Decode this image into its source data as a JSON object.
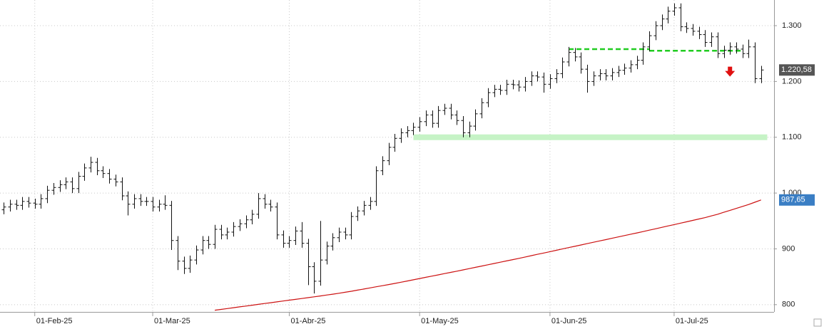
{
  "chart_data": {
    "type": "ohlc",
    "categories": [
      null,
      null,
      null,
      null,
      null,
      "01-Feb-25",
      null,
      null,
      null,
      null,
      null,
      null,
      null,
      null,
      null,
      null,
      null,
      null,
      null,
      null,
      null,
      null,
      null,
      null,
      "01-Mar-25",
      null,
      null,
      null,
      null,
      null,
      null,
      null,
      null,
      null,
      null,
      null,
      null,
      null,
      null,
      null,
      null,
      null,
      null,
      null,
      null,
      null,
      "01-Abr-25",
      null,
      null,
      null,
      null,
      null,
      null,
      null,
      null,
      null,
      null,
      null,
      null,
      null,
      null,
      null,
      null,
      null,
      null,
      null,
      null,
      "01-May-25",
      null,
      null,
      null,
      null,
      null,
      null,
      null,
      null,
      null,
      null,
      null,
      null,
      null,
      null,
      null,
      null,
      null,
      null,
      null,
      null,
      "01-Jun-25",
      null,
      null,
      null,
      null,
      null,
      null,
      null,
      null,
      null,
      null,
      null,
      null,
      null,
      null,
      null,
      null,
      null,
      null,
      null,
      "01-Jul-25",
      null,
      null,
      null,
      null,
      null,
      null,
      null,
      null,
      null,
      null,
      null,
      null,
      null,
      null
    ],
    "xlim": [
      -0.6,
      124.1
    ],
    "ylim": [
      787,
      1346
    ],
    "yticks": [
      800,
      900,
      {
        "value": 1000,
        "label": "1.000"
      },
      {
        "value": 1100,
        "label": "1.100"
      },
      {
        "value": 1200,
        "label": "1.200"
      },
      {
        "value": 1300,
        "label": "1.300"
      }
    ],
    "grid": true,
    "series": [
      {
        "kind": "ohlc",
        "color": "#111111",
        "last_label": "1.220,58",
        "label_color": "#555555",
        "open": [
          970,
          975,
          980,
          978,
          985,
          982,
          980,
          990,
          1005,
          1010,
          1015,
          1020,
          1008,
          1030,
          1045,
          1055,
          1040,
          1035,
          1025,
          1020,
          995,
          980,
          990,
          985,
          985,
          975,
          980,
          978,
          915,
          878,
          865,
          880,
          898,
          915,
          908,
          935,
          925,
          930,
          940,
          945,
          952,
          962,
          990,
          980,
          975,
          925,
          910,
          915,
          932,
          910,
          868,
          842,
          880,
          905,
          920,
          930,
          925,
          958,
          968,
          978,
          985,
          1040,
          1058,
          1082,
          1098,
          1108,
          1112,
          1118,
          1128,
          1140,
          1125,
          1148,
          1152,
          1140,
          1130,
          1108,
          1120,
          1142,
          1162,
          1180,
          1186,
          1184,
          1195,
          1194,
          1190,
          1200,
          1210,
          1208,
          1195,
          1205,
          1214,
          1235,
          1252,
          1244,
          1222,
          1200,
          1210,
          1214,
          1210,
          1216,
          1220,
          1224,
          1230,
          1238,
          1262,
          1282,
          1300,
          1312,
          1326,
          1332,
          1298,
          1295,
          1290,
          1284,
          1270,
          1280,
          1250,
          1256,
          1262,
          1258,
          1250,
          1262,
          1205
        ],
        "high": [
          983,
          988,
          988,
          993,
          993,
          990,
          998,
          1013,
          1018,
          1023,
          1028,
          1028,
          1038,
          1053,
          1065,
          1063,
          1048,
          1043,
          1033,
          1028,
          1003,
          998,
          998,
          993,
          993,
          988,
          996,
          986,
          923,
          886,
          888,
          906,
          923,
          923,
          943,
          943,
          938,
          948,
          953,
          960,
          970,
          1000,
          998,
          988,
          983,
          933,
          923,
          940,
          948,
          918,
          876,
          950,
          913,
          928,
          938,
          938,
          966,
          976,
          986,
          993,
          1048,
          1066,
          1090,
          1106,
          1116,
          1120,
          1126,
          1136,
          1148,
          1148,
          1156,
          1160,
          1160,
          1148,
          1138,
          1128,
          1150,
          1170,
          1188,
          1194,
          1194,
          1203,
          1203,
          1202,
          1208,
          1218,
          1218,
          1216,
          1213,
          1222,
          1243,
          1262,
          1260,
          1252,
          1230,
          1218,
          1222,
          1222,
          1224,
          1228,
          1232,
          1238,
          1246,
          1270,
          1290,
          1308,
          1320,
          1334,
          1340,
          1340,
          1306,
          1303,
          1298,
          1292,
          1288,
          1288,
          1264,
          1270,
          1270,
          1266,
          1275,
          1270,
          1228
        ],
        "low": [
          962,
          967,
          970,
          970,
          974,
          972,
          972,
          982,
          997,
          1002,
          1007,
          1000,
          1000,
          1022,
          1037,
          1032,
          1027,
          1017,
          1012,
          987,
          960,
          972,
          977,
          977,
          967,
          967,
          970,
          898,
          862,
          855,
          857,
          872,
          890,
          900,
          900,
          917,
          917,
          922,
          932,
          937,
          944,
          954,
          972,
          967,
          917,
          902,
          902,
          907,
          902,
          835,
          820,
          834,
          872,
          897,
          912,
          917,
          917,
          950,
          960,
          970,
          977,
          1032,
          1050,
          1074,
          1090,
          1100,
          1104,
          1110,
          1120,
          1117,
          1117,
          1140,
          1132,
          1122,
          1100,
          1100,
          1112,
          1134,
          1154,
          1172,
          1176,
          1176,
          1186,
          1182,
          1182,
          1192,
          1200,
          1180,
          1187,
          1197,
          1206,
          1227,
          1236,
          1214,
          1180,
          1192,
          1202,
          1202,
          1202,
          1208,
          1212,
          1216,
          1222,
          1230,
          1254,
          1274,
          1292,
          1304,
          1318,
          1290,
          1287,
          1282,
          1276,
          1262,
          1262,
          1242,
          1242,
          1248,
          1250,
          1242,
          1242,
          1197,
          1197
        ],
        "close": [
          975,
          980,
          978,
          985,
          982,
          980,
          990,
          1005,
          1010,
          1015,
          1020,
          1008,
          1030,
          1045,
          1055,
          1040,
          1035,
          1025,
          1020,
          995,
          980,
          990,
          985,
          985,
          975,
          980,
          978,
          915,
          878,
          865,
          880,
          898,
          915,
          908,
          935,
          925,
          930,
          940,
          945,
          952,
          962,
          990,
          980,
          975,
          925,
          910,
          915,
          932,
          910,
          868,
          842,
          880,
          905,
          920,
          930,
          925,
          958,
          968,
          978,
          985,
          1040,
          1058,
          1082,
          1098,
          1108,
          1112,
          1118,
          1128,
          1140,
          1125,
          1148,
          1152,
          1140,
          1130,
          1108,
          1120,
          1142,
          1162,
          1180,
          1186,
          1184,
          1195,
          1194,
          1190,
          1200,
          1210,
          1208,
          1195,
          1205,
          1214,
          1235,
          1252,
          1244,
          1222,
          1200,
          1210,
          1214,
          1210,
          1216,
          1220,
          1224,
          1230,
          1238,
          1262,
          1282,
          1300,
          1312,
          1326,
          1332,
          1298,
          1295,
          1290,
          1284,
          1270,
          1280,
          1250,
          1256,
          1262,
          1258,
          1250,
          1262,
          1205,
          1220.58
        ]
      },
      {
        "kind": "line",
        "color": "#cc1111",
        "last_label": "987,65",
        "label_color": "#3a7ec4",
        "values": [
          null,
          null,
          null,
          null,
          null,
          null,
          null,
          null,
          null,
          null,
          null,
          null,
          null,
          null,
          null,
          null,
          null,
          null,
          null,
          null,
          null,
          null,
          null,
          null,
          null,
          null,
          null,
          null,
          null,
          null,
          null,
          null,
          null,
          null,
          790,
          791.5,
          793,
          794.5,
          796,
          797.5,
          799,
          800.5,
          802,
          803.5,
          805,
          806.5,
          808,
          809.5,
          811,
          812.5,
          814,
          815.6,
          817.2,
          818.8,
          820.5,
          822.2,
          824,
          826,
          828,
          830,
          832,
          834,
          836,
          838,
          840.2,
          842.4,
          844.6,
          846.8,
          849,
          851.2,
          853.4,
          855.6,
          857.8,
          860,
          862.3,
          864.6,
          866.9,
          869.2,
          871.5,
          873.8,
          876.1,
          878.4,
          880.7,
          883,
          885.4,
          887.8,
          890.2,
          892.6,
          895,
          897.4,
          899.8,
          902.2,
          904.6,
          907,
          909.4,
          911.8,
          914.2,
          916.6,
          919,
          921.4,
          923.8,
          926.2,
          928.6,
          931,
          933.5,
          936,
          938.5,
          941,
          943.5,
          946,
          948.5,
          951,
          953.5,
          956,
          959,
          962,
          965.5,
          969,
          972.5,
          976,
          979.5,
          983.5,
          987.65
        ]
      }
    ],
    "annotations": [
      {
        "kind": "dashed",
        "color": "#22cc22",
        "y": 1258,
        "x": [
          91,
          104
        ]
      },
      {
        "kind": "dashed",
        "color": "#22cc22",
        "y": 1255,
        "x": [
          104,
          119
        ]
      },
      {
        "kind": "band",
        "color": "#c6f3c6",
        "y": 1100,
        "x": [
          66,
          123
        ]
      },
      {
        "kind": "arrow",
        "color": "#e01010",
        "y": 1215,
        "x": 117
      }
    ]
  }
}
